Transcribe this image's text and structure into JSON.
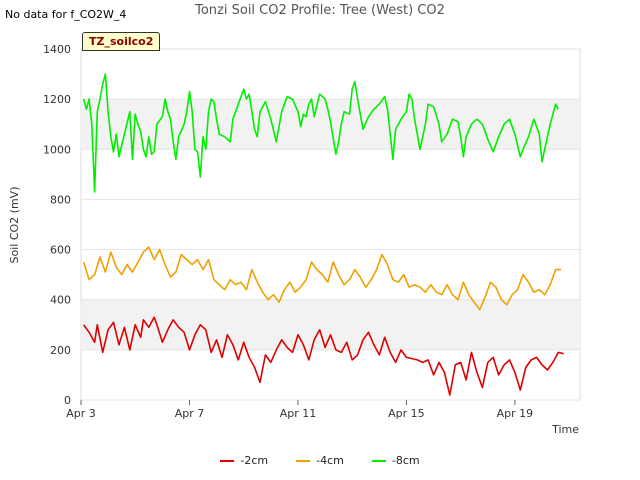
{
  "note": "No data for f_CO2W_4",
  "badge": "TZ_soilco2",
  "chart_data": {
    "type": "line",
    "title": "Tonzi Soil CO2 Profile: Tree (West) CO2",
    "xlabel": "Time",
    "ylabel": "Soil CO2 (mV)",
    "xlim": [
      0,
      18.4
    ],
    "ylim": [
      0,
      1400
    ],
    "x_ticks": [
      {
        "value": 0,
        "label": "Apr 3"
      },
      {
        "value": 4,
        "label": "Apr 7"
      },
      {
        "value": 8,
        "label": "Apr 11"
      },
      {
        "value": 12,
        "label": "Apr 15"
      },
      {
        "value": 16,
        "label": "Apr 19"
      }
    ],
    "y_ticks": [
      0,
      200,
      400,
      600,
      800,
      1000,
      1200,
      1400
    ],
    "grid_bands": [
      [
        200,
        400
      ],
      [
        1000,
        1200
      ]
    ],
    "series": [
      {
        "name": "-2cm",
        "color": "#dd0000",
        "points": [
          [
            0.1,
            300
          ],
          [
            0.3,
            270
          ],
          [
            0.5,
            230
          ],
          [
            0.6,
            300
          ],
          [
            0.8,
            190
          ],
          [
            1.0,
            280
          ],
          [
            1.2,
            310
          ],
          [
            1.4,
            220
          ],
          [
            1.6,
            290
          ],
          [
            1.8,
            200
          ],
          [
            2.0,
            300
          ],
          [
            2.2,
            250
          ],
          [
            2.3,
            320
          ],
          [
            2.5,
            290
          ],
          [
            2.7,
            330
          ],
          [
            2.8,
            300
          ],
          [
            3.0,
            230
          ],
          [
            3.2,
            280
          ],
          [
            3.4,
            320
          ],
          [
            3.6,
            290
          ],
          [
            3.8,
            270
          ],
          [
            4.0,
            200
          ],
          [
            4.2,
            260
          ],
          [
            4.4,
            300
          ],
          [
            4.6,
            280
          ],
          [
            4.8,
            190
          ],
          [
            5.0,
            240
          ],
          [
            5.2,
            170
          ],
          [
            5.4,
            260
          ],
          [
            5.6,
            220
          ],
          [
            5.8,
            160
          ],
          [
            6.0,
            230
          ],
          [
            6.2,
            170
          ],
          [
            6.4,
            130
          ],
          [
            6.6,
            70
          ],
          [
            6.8,
            180
          ],
          [
            7.0,
            150
          ],
          [
            7.2,
            200
          ],
          [
            7.4,
            240
          ],
          [
            7.6,
            210
          ],
          [
            7.8,
            190
          ],
          [
            8.0,
            260
          ],
          [
            8.2,
            220
          ],
          [
            8.4,
            160
          ],
          [
            8.6,
            240
          ],
          [
            8.8,
            280
          ],
          [
            9.0,
            210
          ],
          [
            9.2,
            260
          ],
          [
            9.4,
            200
          ],
          [
            9.6,
            190
          ],
          [
            9.8,
            230
          ],
          [
            10.0,
            160
          ],
          [
            10.2,
            180
          ],
          [
            10.4,
            240
          ],
          [
            10.6,
            270
          ],
          [
            10.8,
            220
          ],
          [
            11.0,
            180
          ],
          [
            11.2,
            250
          ],
          [
            11.4,
            190
          ],
          [
            11.6,
            150
          ],
          [
            11.8,
            200
          ],
          [
            12.0,
            170
          ],
          [
            12.2,
            165
          ],
          [
            12.4,
            160
          ],
          [
            12.6,
            150
          ],
          [
            12.8,
            160
          ],
          [
            13.0,
            100
          ],
          [
            13.2,
            150
          ],
          [
            13.4,
            110
          ],
          [
            13.6,
            20
          ],
          [
            13.8,
            140
          ],
          [
            14.0,
            150
          ],
          [
            14.2,
            80
          ],
          [
            14.4,
            190
          ],
          [
            14.6,
            110
          ],
          [
            14.8,
            50
          ],
          [
            15.0,
            150
          ],
          [
            15.2,
            170
          ],
          [
            15.4,
            100
          ],
          [
            15.6,
            140
          ],
          [
            15.8,
            160
          ],
          [
            16.0,
            110
          ],
          [
            16.2,
            40
          ],
          [
            16.4,
            130
          ],
          [
            16.6,
            160
          ],
          [
            16.8,
            170
          ],
          [
            17.0,
            140
          ],
          [
            17.2,
            120
          ],
          [
            17.4,
            150
          ],
          [
            17.6,
            190
          ],
          [
            17.8,
            185
          ]
        ]
      },
      {
        "name": "-4cm",
        "color": "#f0a000",
        "points": [
          [
            0.1,
            550
          ],
          [
            0.3,
            480
          ],
          [
            0.5,
            500
          ],
          [
            0.7,
            570
          ],
          [
            0.9,
            510
          ],
          [
            1.1,
            590
          ],
          [
            1.3,
            530
          ],
          [
            1.5,
            500
          ],
          [
            1.7,
            540
          ],
          [
            1.9,
            510
          ],
          [
            2.1,
            550
          ],
          [
            2.3,
            590
          ],
          [
            2.5,
            610
          ],
          [
            2.7,
            560
          ],
          [
            2.9,
            600
          ],
          [
            3.1,
            540
          ],
          [
            3.3,
            490
          ],
          [
            3.5,
            510
          ],
          [
            3.7,
            580
          ],
          [
            3.9,
            560
          ],
          [
            4.1,
            540
          ],
          [
            4.3,
            560
          ],
          [
            4.5,
            520
          ],
          [
            4.7,
            560
          ],
          [
            4.9,
            480
          ],
          [
            5.1,
            460
          ],
          [
            5.3,
            440
          ],
          [
            5.5,
            480
          ],
          [
            5.7,
            460
          ],
          [
            5.9,
            470
          ],
          [
            6.1,
            440
          ],
          [
            6.3,
            520
          ],
          [
            6.5,
            470
          ],
          [
            6.7,
            430
          ],
          [
            6.9,
            400
          ],
          [
            7.1,
            420
          ],
          [
            7.3,
            390
          ],
          [
            7.5,
            440
          ],
          [
            7.7,
            470
          ],
          [
            7.9,
            430
          ],
          [
            8.1,
            450
          ],
          [
            8.3,
            480
          ],
          [
            8.5,
            550
          ],
          [
            8.7,
            520
          ],
          [
            8.9,
            500
          ],
          [
            9.1,
            470
          ],
          [
            9.3,
            550
          ],
          [
            9.5,
            500
          ],
          [
            9.7,
            460
          ],
          [
            9.9,
            480
          ],
          [
            10.1,
            520
          ],
          [
            10.3,
            490
          ],
          [
            10.5,
            450
          ],
          [
            10.7,
            480
          ],
          [
            10.9,
            520
          ],
          [
            11.1,
            580
          ],
          [
            11.3,
            540
          ],
          [
            11.5,
            480
          ],
          [
            11.7,
            470
          ],
          [
            11.9,
            500
          ],
          [
            12.1,
            450
          ],
          [
            12.3,
            460
          ],
          [
            12.5,
            450
          ],
          [
            12.7,
            430
          ],
          [
            12.9,
            460
          ],
          [
            13.1,
            430
          ],
          [
            13.3,
            420
          ],
          [
            13.5,
            460
          ],
          [
            13.7,
            420
          ],
          [
            13.9,
            400
          ],
          [
            14.1,
            470
          ],
          [
            14.3,
            420
          ],
          [
            14.5,
            390
          ],
          [
            14.7,
            360
          ],
          [
            14.9,
            410
          ],
          [
            15.1,
            470
          ],
          [
            15.3,
            450
          ],
          [
            15.5,
            400
          ],
          [
            15.7,
            380
          ],
          [
            15.9,
            420
          ],
          [
            16.1,
            440
          ],
          [
            16.3,
            500
          ],
          [
            16.5,
            470
          ],
          [
            16.7,
            430
          ],
          [
            16.9,
            440
          ],
          [
            17.1,
            420
          ],
          [
            17.3,
            460
          ],
          [
            17.5,
            520
          ],
          [
            17.7,
            520
          ]
        ]
      },
      {
        "name": "-8cm",
        "color": "#00ee00",
        "points": [
          [
            0.1,
            1200
          ],
          [
            0.2,
            1160
          ],
          [
            0.3,
            1200
          ],
          [
            0.4,
            1100
          ],
          [
            0.5,
            830
          ],
          [
            0.6,
            1150
          ],
          [
            0.7,
            1200
          ],
          [
            0.8,
            1260
          ],
          [
            0.9,
            1300
          ],
          [
            1.0,
            1150
          ],
          [
            1.1,
            1050
          ],
          [
            1.2,
            990
          ],
          [
            1.3,
            1060
          ],
          [
            1.4,
            970
          ],
          [
            1.6,
            1060
          ],
          [
            1.8,
            1150
          ],
          [
            1.9,
            960
          ],
          [
            2.0,
            1140
          ],
          [
            2.1,
            1100
          ],
          [
            2.2,
            1070
          ],
          [
            2.3,
            1000
          ],
          [
            2.4,
            970
          ],
          [
            2.5,
            1050
          ],
          [
            2.6,
            980
          ],
          [
            2.7,
            990
          ],
          [
            2.8,
            1100
          ],
          [
            3.0,
            1130
          ],
          [
            3.1,
            1200
          ],
          [
            3.2,
            1150
          ],
          [
            3.3,
            1120
          ],
          [
            3.4,
            1030
          ],
          [
            3.5,
            960
          ],
          [
            3.6,
            1050
          ],
          [
            3.8,
            1100
          ],
          [
            3.9,
            1150
          ],
          [
            4.0,
            1230
          ],
          [
            4.1,
            1150
          ],
          [
            4.2,
            1000
          ],
          [
            4.3,
            990
          ],
          [
            4.4,
            890
          ],
          [
            4.5,
            1050
          ],
          [
            4.6,
            1000
          ],
          [
            4.7,
            1150
          ],
          [
            4.8,
            1200
          ],
          [
            4.9,
            1190
          ],
          [
            5.0,
            1120
          ],
          [
            5.1,
            1060
          ],
          [
            5.3,
            1050
          ],
          [
            5.5,
            1030
          ],
          [
            5.6,
            1120
          ],
          [
            5.8,
            1180
          ],
          [
            6.0,
            1240
          ],
          [
            6.1,
            1200
          ],
          [
            6.2,
            1220
          ],
          [
            6.3,
            1150
          ],
          [
            6.4,
            1080
          ],
          [
            6.5,
            1050
          ],
          [
            6.6,
            1150
          ],
          [
            6.8,
            1190
          ],
          [
            7.0,
            1120
          ],
          [
            7.2,
            1030
          ],
          [
            7.4,
            1150
          ],
          [
            7.6,
            1210
          ],
          [
            7.8,
            1200
          ],
          [
            8.0,
            1150
          ],
          [
            8.1,
            1090
          ],
          [
            8.2,
            1140
          ],
          [
            8.3,
            1130
          ],
          [
            8.4,
            1180
          ],
          [
            8.5,
            1200
          ],
          [
            8.6,
            1130
          ],
          [
            8.8,
            1220
          ],
          [
            9.0,
            1200
          ],
          [
            9.1,
            1160
          ],
          [
            9.2,
            1110
          ],
          [
            9.4,
            980
          ],
          [
            9.5,
            1030
          ],
          [
            9.6,
            1100
          ],
          [
            9.7,
            1150
          ],
          [
            9.9,
            1140
          ],
          [
            10.0,
            1240
          ],
          [
            10.1,
            1270
          ],
          [
            10.2,
            1200
          ],
          [
            10.3,
            1140
          ],
          [
            10.4,
            1080
          ],
          [
            10.6,
            1130
          ],
          [
            10.8,
            1160
          ],
          [
            11.0,
            1180
          ],
          [
            11.2,
            1210
          ],
          [
            11.3,
            1160
          ],
          [
            11.4,
            1060
          ],
          [
            11.5,
            960
          ],
          [
            11.6,
            1080
          ],
          [
            11.8,
            1120
          ],
          [
            12.0,
            1150
          ],
          [
            12.1,
            1220
          ],
          [
            12.2,
            1200
          ],
          [
            12.3,
            1120
          ],
          [
            12.4,
            1060
          ],
          [
            12.5,
            1000
          ],
          [
            12.7,
            1100
          ],
          [
            12.8,
            1180
          ],
          [
            13.0,
            1170
          ],
          [
            13.2,
            1100
          ],
          [
            13.3,
            1030
          ],
          [
            13.5,
            1060
          ],
          [
            13.7,
            1120
          ],
          [
            13.9,
            1110
          ],
          [
            14.0,
            1050
          ],
          [
            14.1,
            970
          ],
          [
            14.2,
            1050
          ],
          [
            14.4,
            1100
          ],
          [
            14.6,
            1120
          ],
          [
            14.8,
            1100
          ],
          [
            15.0,
            1040
          ],
          [
            15.2,
            990
          ],
          [
            15.4,
            1050
          ],
          [
            15.6,
            1100
          ],
          [
            15.8,
            1120
          ],
          [
            16.0,
            1060
          ],
          [
            16.2,
            970
          ],
          [
            16.3,
            1000
          ],
          [
            16.5,
            1050
          ],
          [
            16.7,
            1120
          ],
          [
            16.9,
            1060
          ],
          [
            17.0,
            950
          ],
          [
            17.1,
            1000
          ],
          [
            17.3,
            1100
          ],
          [
            17.5,
            1180
          ],
          [
            17.6,
            1160
          ]
        ]
      }
    ]
  }
}
